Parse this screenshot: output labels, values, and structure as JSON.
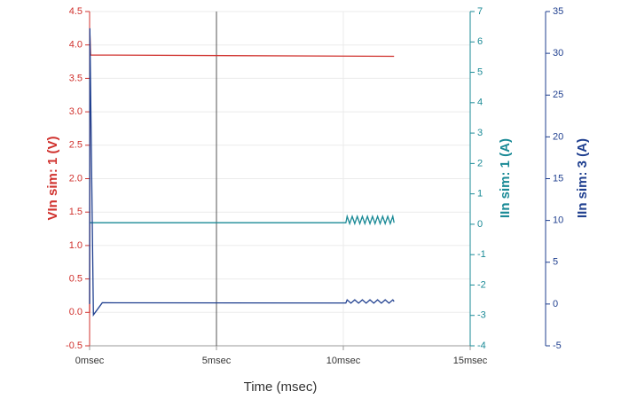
{
  "chart_data": {
    "type": "line",
    "xlabel": "Time (msec)",
    "xlim": [
      0,
      15
    ],
    "xticks": [
      {
        "value": 0,
        "label": "0msec"
      },
      {
        "value": 5,
        "label": "5msec"
      },
      {
        "value": 10,
        "label": "10msec"
      },
      {
        "value": 15,
        "label": "15msec"
      }
    ],
    "ylabel": "VIn sim: 1 (V)",
    "ylim": [
      -0.5,
      4.5
    ],
    "yticks": [
      -0.5,
      {
        "value": 0,
        "label": "0.0"
      },
      0.5,
      {
        "value": 1,
        "label": "1.0"
      },
      1.5,
      {
        "value": 2,
        "label": "2.0"
      },
      2.5,
      {
        "value": 3,
        "label": "3.0"
      },
      3.5,
      {
        "value": 4,
        "label": "4.0"
      },
      4.5
    ],
    "y2label": "IIn sim: 1 (A)",
    "y2lim": [
      -4,
      7
    ],
    "y2ticks": [
      -4,
      -3,
      -2,
      -1,
      0,
      1,
      2,
      3,
      4,
      5,
      6,
      7
    ],
    "y3label": "IIn sim: 3 (A)",
    "y3lim": [
      -5,
      35
    ],
    "y3ticks": [
      -5,
      0,
      5,
      10,
      15,
      20,
      25,
      30,
      35
    ],
    "grid": true,
    "vline": 5,
    "series": [
      {
        "name": "VIn sim: 1 (V)",
        "color": "#d0312d",
        "axis": "y",
        "x": [
          0,
          0.01,
          0.04,
          12
        ],
        "values": [
          0,
          4.18,
          3.85,
          3.83
        ]
      },
      {
        "name": "IIn sim: 1 (A)",
        "color": "#1a8a96",
        "axis": "y2",
        "x": [
          0,
          10.1,
          10.15,
          10.25,
          10.35,
          10.45,
          10.55,
          10.65,
          10.75,
          10.85,
          10.95,
          11.05,
          11.15,
          11.25,
          11.35,
          11.45,
          11.55,
          11.65,
          11.75,
          11.85,
          11.95,
          12
        ],
        "values": [
          0.05,
          0.05,
          0.26,
          0.02,
          0.26,
          0.02,
          0.26,
          0.02,
          0.26,
          0.02,
          0.26,
          0.02,
          0.26,
          0.02,
          0.26,
          0.02,
          0.26,
          0.02,
          0.26,
          0.02,
          0.26,
          0.05
        ]
      },
      {
        "name": "IIn sim: 3 (A)",
        "color": "#1f3f8f",
        "axis": "y3",
        "x": [
          0,
          0.01,
          0.15,
          0.5,
          10.1,
          10.15,
          10.3,
          10.45,
          10.6,
          10.75,
          10.9,
          11.05,
          11.2,
          11.35,
          11.5,
          11.65,
          11.8,
          11.95,
          12
        ],
        "values": [
          0,
          33,
          -1.3,
          0.15,
          0.12,
          0.5,
          0.1,
          0.5,
          0.1,
          0.5,
          0.1,
          0.5,
          0.1,
          0.5,
          0.1,
          0.5,
          0.1,
          0.5,
          0.3
        ]
      }
    ]
  }
}
